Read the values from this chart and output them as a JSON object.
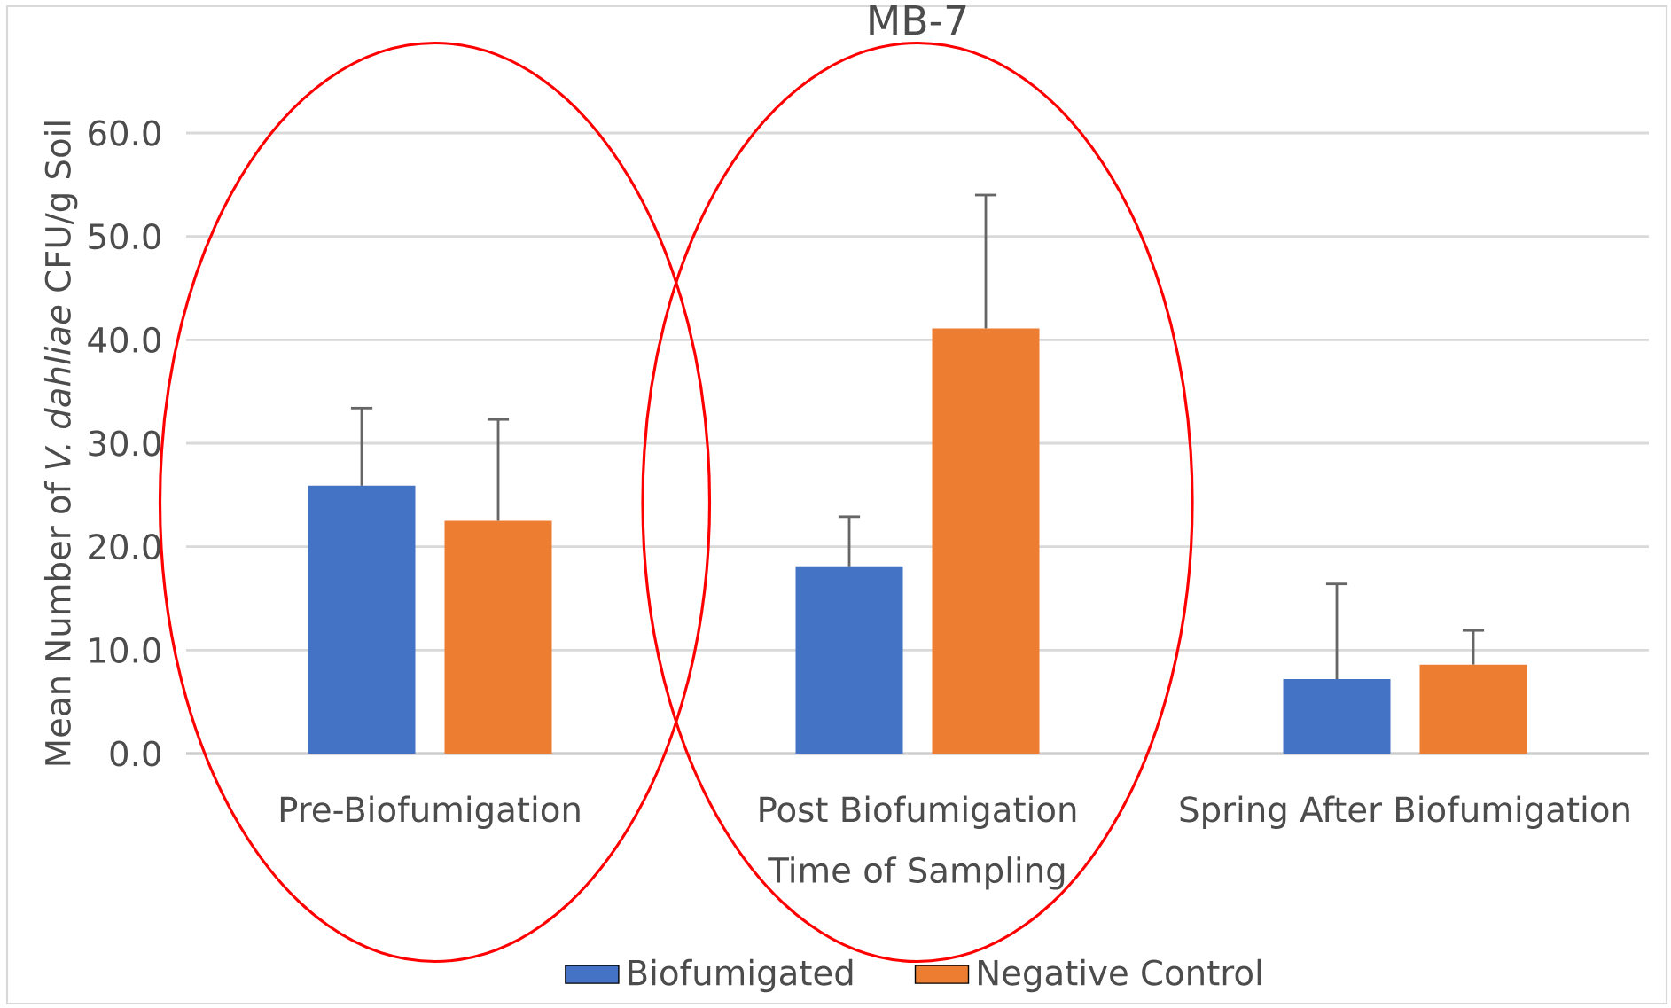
{
  "chart_data": {
    "type": "bar",
    "title": "MB-7",
    "xlabel": "Time of Sampling",
    "ylabel": "Mean Number of *V. dahliae* CFU/g Soil",
    "categories": [
      "Pre-Biofumigation",
      "Post Biofumigation",
      "Spring After Biofumigation"
    ],
    "series": [
      {
        "name": "Biofumigated",
        "color": "#4472c4",
        "values": [
          25.9,
          18.1,
          7.2
        ],
        "errors": [
          [
            25.9,
            33.4
          ],
          [
            18.1,
            22.9
          ],
          [
            7.2,
            16.4
          ]
        ]
      },
      {
        "name": "Negative Control",
        "color": "#ed7d31",
        "values": [
          22.5,
          41.1,
          8.6
        ],
        "errors": [
          [
            22.5,
            32.3
          ],
          [
            41.1,
            54.0
          ],
          [
            8.6,
            11.9
          ]
        ]
      }
    ],
    "ylim": [
      0,
      60
    ],
    "yticks": [
      {
        "value": 0,
        "label": "0.0"
      },
      {
        "value": 10,
        "label": "10.0"
      },
      {
        "value": 20,
        "label": "20.0"
      },
      {
        "value": 30,
        "label": "30.0"
      },
      {
        "value": 40,
        "label": "40.0"
      },
      {
        "value": 50,
        "label": "50.0"
      },
      {
        "value": 60,
        "label": "60.0"
      }
    ],
    "grid": "y",
    "legend": "bottom"
  }
}
